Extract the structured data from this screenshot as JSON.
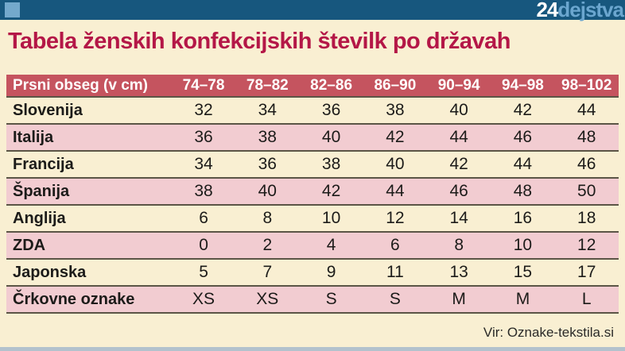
{
  "masthead": {
    "logo_prefix": "24",
    "logo_suffix": "dejstva"
  },
  "title": "Tabela ženskih konfekcijskih številk po državah",
  "source": "Vir: Oznake-tekstila.si",
  "colors": {
    "top_bar": "#17577e",
    "accent_square": "#74a9cc",
    "logo_prefix": "#ffffff",
    "logo_suffix": "#6ba6cf",
    "background": "#f9efd2",
    "title": "#b41747",
    "header_row": "#c5545f",
    "pink_row": "#f2ccd1",
    "cream_row": "#f9efd2",
    "row_separator": "#5b5546",
    "bottom_strip": "#b3c2cd"
  },
  "chart_data": {
    "type": "table",
    "title": "Tabela ženskih konfekcijskih številk po državah",
    "columns": [
      "Prsni obseg (v cm)",
      "74–78",
      "78–82",
      "82–86",
      "86–90",
      "90–94",
      "94–98",
      "98–102"
    ],
    "rows": [
      {
        "label": "Slovenija",
        "values": [
          "32",
          "34",
          "36",
          "38",
          "40",
          "42",
          "44"
        ]
      },
      {
        "label": "Italija",
        "values": [
          "36",
          "38",
          "40",
          "42",
          "44",
          "46",
          "48"
        ]
      },
      {
        "label": "Francija",
        "values": [
          "34",
          "36",
          "38",
          "40",
          "42",
          "44",
          "46"
        ]
      },
      {
        "label": "Španija",
        "values": [
          "38",
          "40",
          "42",
          "44",
          "46",
          "48",
          "50"
        ]
      },
      {
        "label": "Anglija",
        "values": [
          "6",
          "8",
          "10",
          "12",
          "14",
          "16",
          "18"
        ]
      },
      {
        "label": "ZDA",
        "values": [
          "0",
          "2",
          "4",
          "6",
          "8",
          "10",
          "12"
        ]
      },
      {
        "label": "Japonska",
        "values": [
          "5",
          "7",
          "9",
          "11",
          "13",
          "15",
          "17"
        ]
      },
      {
        "label": "Črkovne oznake",
        "values": [
          "XS",
          "XS",
          "S",
          "S",
          "M",
          "M",
          "L"
        ]
      }
    ],
    "source": "Vir: Oznake-tekstila.si",
    "layout": {
      "row_striping": "cream/pink alternating",
      "first_column_align": "left",
      "value_align": "center"
    }
  }
}
